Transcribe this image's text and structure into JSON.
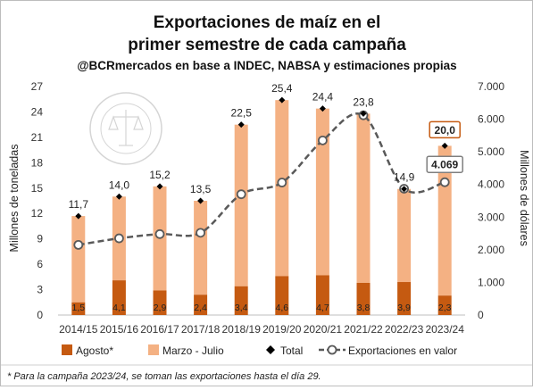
{
  "chart_data": {
    "type": "bar",
    "title": "Exportaciones de maíz en el",
    "title_line2": "primer semestre de cada campaña",
    "subtitle": "@BCRmercados en base a INDEC, NABSA y estimaciones propias",
    "categories": [
      "2014/15",
      "2015/16",
      "2016/17",
      "2017/18",
      "2018/19",
      "2019/20",
      "2020/21",
      "2021/22",
      "2022/23",
      "2023/24"
    ],
    "series": [
      {
        "name": "Agosto*",
        "values": [
          1.5,
          4.1,
          2.9,
          2.4,
          3.4,
          4.6,
          4.7,
          3.8,
          3.9,
          2.3
        ],
        "color": "#c55a11"
      },
      {
        "name": "Marzo - Julio",
        "values": [
          10.2,
          9.9,
          12.3,
          11.1,
          19.1,
          20.8,
          19.7,
          20.0,
          11.0,
          17.7
        ],
        "color": "#f4b183"
      },
      {
        "name": "Total",
        "values": [
          11.7,
          14.0,
          15.2,
          13.5,
          22.5,
          25.4,
          24.4,
          23.8,
          14.9,
          20.0
        ]
      },
      {
        "name": "Exportaciones en valor",
        "values": [
          2150,
          2350,
          2480,
          2520,
          3700,
          4060,
          5350,
          6120,
          3870,
          4069
        ],
        "axis": "right",
        "color": "#595959"
      }
    ],
    "labels": {
      "bottom": [
        "1,5",
        "4,1",
        "2,9",
        "2,4",
        "3,4",
        "4,6",
        "4,7",
        "3,8",
        "3,9",
        "2,3"
      ],
      "total": [
        "11,7",
        "14,0",
        "15,2",
        "13,5",
        "22,5",
        "25,4",
        "24,4",
        "23,8",
        "14,9",
        "20,0"
      ],
      "value_callout": "4.069"
    },
    "ylabel": "Millones de toneladas",
    "ylabel_right": "Millones de dólares",
    "ylim": [
      0,
      27
    ],
    "yticks": [
      "0",
      "3",
      "6",
      "9",
      "12",
      "15",
      "18",
      "21",
      "24",
      "27"
    ],
    "ylim_right": [
      0,
      7000
    ],
    "yticks_right": [
      "0",
      "1.000",
      "2.000",
      "3.000",
      "4.000",
      "5.000",
      "6.000",
      "7.000"
    ],
    "grid": false,
    "legend_position": "bottom",
    "footnote": "* Para la campaña 2023/24, se toman las exportaciones hasta el día 29."
  },
  "watermark": {
    "text": "BOLSA DE COMERCIO DE ROSARIO"
  }
}
